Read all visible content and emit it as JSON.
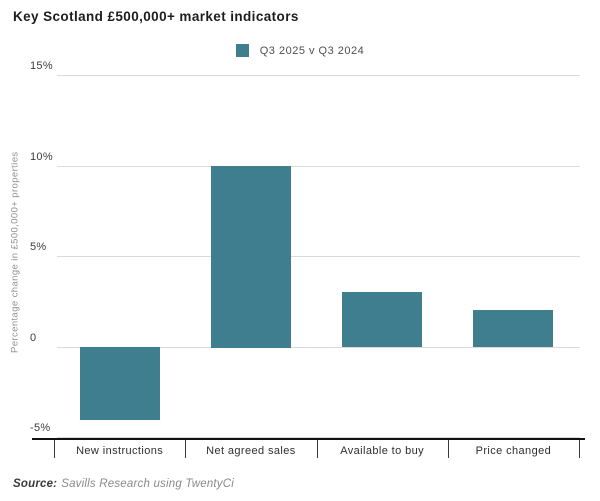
{
  "chart": {
    "title": "Key Scotland £500,000+ market indicators",
    "legend_label": "Q3 2025 v Q3 2024",
    "ylabel": "Percentage change in £500,000+ properties",
    "source_label": "Source:",
    "source_text": "Savills Research using TwentyCi"
  },
  "colors": {
    "bar_teal": "#3E7E8E",
    "gridline": "#dbdbdb",
    "axis": "#111111",
    "title_text": "#1d1d1d",
    "axis_label_text": "#8f8f8f"
  },
  "chart_data": {
    "type": "bar",
    "title": "Key Scotland £500,000+ market indicators",
    "legend": [
      "Q3 2025 v Q3 2024"
    ],
    "legend_position": "top-center",
    "categories": [
      "New instructions",
      "Net agreed sales",
      "Available to buy",
      "Price changed"
    ],
    "values": [
      -4,
      10,
      3,
      2
    ],
    "series_name": "Q3 2025 v Q3 2024",
    "xlabel": "",
    "ylabel": "Percentage change in £500,000+ properties",
    "ylim": [
      -5,
      15
    ],
    "yticks": [
      15,
      10,
      5,
      0,
      -5
    ],
    "ytick_labels": [
      "15%",
      "10%",
      "5%",
      "0",
      "-5%"
    ],
    "grid": true,
    "bar_color": "#3E7E8E",
    "source": "Savills Research using TwentyCi"
  }
}
